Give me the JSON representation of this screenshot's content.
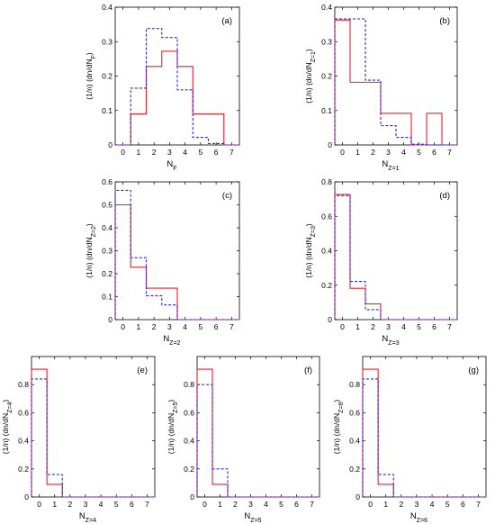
{
  "colors": {
    "solid": "#e8202a",
    "dashed": "#2a2ad8",
    "axis": "#000000"
  },
  "chart_data": [
    {
      "type": "bar",
      "panel": "(a)",
      "xlabel": "N",
      "xlabel_sub": "F",
      "ylabel": "(1/n) (dn/dN",
      "ylabel_sub": "F",
      "ylabel_end": ")",
      "categories": [
        0,
        1,
        2,
        3,
        4,
        5,
        6,
        7
      ],
      "xlim": [
        -0.5,
        7.5
      ],
      "ylim": [
        0,
        0.4
      ],
      "yticks": [
        "0",
        "0.1",
        "0.2",
        "0.3",
        "0.4"
      ],
      "series": [
        {
          "style": "solid",
          "values": [
            0,
            0.09,
            0.228,
            0.272,
            0.228,
            0.09,
            0.09,
            0
          ]
        },
        {
          "style": "dashed",
          "values": [
            0,
            0.165,
            0.338,
            0.312,
            0.16,
            0.022,
            0.004,
            0
          ]
        }
      ]
    },
    {
      "type": "bar",
      "panel": "(b)",
      "xlabel": "N",
      "xlabel_sub": "Z=1",
      "ylabel": "(1/n) (dn/dN",
      "ylabel_sub": "Z=1",
      "ylabel_end": ")",
      "categories": [
        0,
        1,
        2,
        3,
        4,
        5,
        6,
        7
      ],
      "xlim": [
        -0.5,
        7.5
      ],
      "ylim": [
        0,
        0.4
      ],
      "yticks": [
        "0",
        "0.1",
        "0.2",
        "0.3",
        "0.4"
      ],
      "series": [
        {
          "style": "solid",
          "values": [
            0.363,
            0.182,
            0.182,
            0.092,
            0.092,
            0,
            0.092,
            0
          ]
        },
        {
          "style": "dashed",
          "values": [
            0.366,
            0.366,
            0.188,
            0.056,
            0.022,
            0.002,
            0,
            0
          ]
        }
      ]
    },
    {
      "type": "bar",
      "panel": "(c)",
      "xlabel": "N",
      "xlabel_sub": "Z=2",
      "ylabel": "(1/n) (dn/dN",
      "ylabel_sub": "Z=2",
      "ylabel_end": ")",
      "categories": [
        0,
        1,
        2,
        3,
        4,
        5,
        6,
        7
      ],
      "xlim": [
        -0.5,
        7.5
      ],
      "ylim": [
        0,
        0.6
      ],
      "yticks": [
        "0",
        "0.1",
        "0.2",
        "0.3",
        "0.4",
        "0.5",
        "0.6"
      ],
      "series": [
        {
          "style": "solid",
          "values": [
            0.5,
            0.228,
            0.137,
            0.137,
            0,
            0,
            0,
            0
          ]
        },
        {
          "style": "dashed",
          "values": [
            0.563,
            0.27,
            0.104,
            0.064,
            0,
            0,
            0,
            0
          ]
        }
      ]
    },
    {
      "type": "bar",
      "panel": "(d)",
      "xlabel": "N",
      "xlabel_sub": "Z=3",
      "ylabel": "(1/n) (dn/dN",
      "ylabel_sub": "Z=3",
      "ylabel_end": ")",
      "categories": [
        0,
        1,
        2,
        3,
        4,
        5,
        6,
        7
      ],
      "xlim": [
        -0.5,
        7.5
      ],
      "ylim": [
        0,
        0.8
      ],
      "yticks": [
        "0",
        "0.2",
        "0.4",
        "0.6",
        "0.8"
      ],
      "series": [
        {
          "style": "solid",
          "values": [
            0.727,
            0.182,
            0.091,
            0,
            0,
            0,
            0,
            0
          ]
        },
        {
          "style": "dashed",
          "values": [
            0.72,
            0.222,
            0.058,
            0,
            0,
            0,
            0,
            0
          ]
        }
      ]
    },
    {
      "type": "bar",
      "panel": "(e)",
      "xlabel": "N",
      "xlabel_sub": "Z=4",
      "ylabel": "(1/n) (dn/dN",
      "ylabel_sub": "Z=4",
      "ylabel_end": ")",
      "categories": [
        0,
        1,
        2,
        3,
        4,
        5,
        6,
        7
      ],
      "xlim": [
        -0.5,
        7.5
      ],
      "ylim": [
        0,
        1.0
      ],
      "yticks": [
        "0",
        "0.2",
        "0.4",
        "0.6",
        "0.8"
      ],
      "series": [
        {
          "style": "solid",
          "values": [
            0.91,
            0.09,
            0,
            0,
            0,
            0,
            0,
            0
          ]
        },
        {
          "style": "dashed",
          "values": [
            0.84,
            0.16,
            0,
            0,
            0,
            0,
            0,
            0
          ]
        }
      ]
    },
    {
      "type": "bar",
      "panel": "(f)",
      "xlabel": "N",
      "xlabel_sub": "Z=5",
      "ylabel": "(1/n) (dn/dN",
      "ylabel_sub": "Z=5",
      "ylabel_end": ")",
      "categories": [
        0,
        1,
        2,
        3,
        4,
        5,
        6,
        7
      ],
      "xlim": [
        -0.5,
        7.5
      ],
      "ylim": [
        0,
        1.0
      ],
      "yticks": [
        "0",
        "0.2",
        "0.4",
        "0.6",
        "0.8"
      ],
      "series": [
        {
          "style": "solid",
          "values": [
            0.91,
            0.09,
            0,
            0,
            0,
            0,
            0,
            0
          ]
        },
        {
          "style": "dashed",
          "values": [
            0.8,
            0.2,
            0,
            0,
            0,
            0,
            0,
            0
          ]
        }
      ]
    },
    {
      "type": "bar",
      "panel": "(g)",
      "xlabel": "N",
      "xlabel_sub": "Z=6",
      "ylabel": "(1/n) (dn/dN",
      "ylabel_sub": "Z=6",
      "ylabel_end": ")",
      "categories": [
        0,
        1,
        2,
        3,
        4,
        5,
        6,
        7
      ],
      "xlim": [
        -0.5,
        7.5
      ],
      "ylim": [
        0,
        1.0
      ],
      "yticks": [
        "0",
        "0.2",
        "0.4",
        "0.6",
        "0.8"
      ],
      "series": [
        {
          "style": "solid",
          "values": [
            0.91,
            0.09,
            0,
            0,
            0,
            0,
            0,
            0
          ]
        },
        {
          "style": "dashed",
          "values": [
            0.84,
            0.16,
            0,
            0,
            0,
            0,
            0,
            0
          ]
        }
      ]
    }
  ]
}
